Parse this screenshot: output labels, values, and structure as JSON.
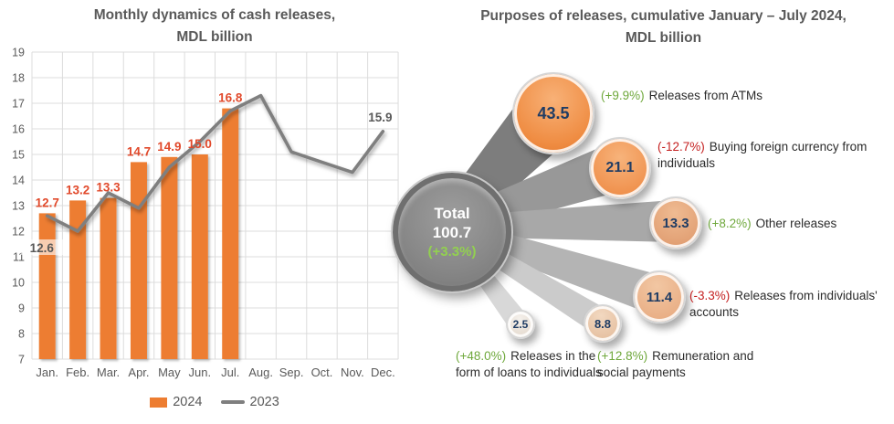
{
  "chart_data": [
    {
      "type": "bar",
      "title": "Monthly dynamics of cash releases, MDL billion",
      "title_lines": [
        "Monthly dynamics of cash releases,",
        "MDL billion"
      ],
      "categories": [
        "Jan.",
        "Feb.",
        "Mar.",
        "Apr.",
        "May",
        "Jun.",
        "Jul.",
        "Aug.",
        "Sep.",
        "Oct.",
        "Nov.",
        "Dec."
      ],
      "series": [
        {
          "name": "2024",
          "type": "bar",
          "color": "#ED7D31",
          "values": [
            12.7,
            13.2,
            13.3,
            14.7,
            14.9,
            15.0,
            16.8,
            null,
            null,
            null,
            null,
            null
          ],
          "label_color": "#E1492B"
        },
        {
          "name": "2023",
          "type": "line",
          "color": "#7F7F7F",
          "values": [
            12.6,
            12.0,
            13.5,
            12.9,
            14.5,
            15.5,
            16.7,
            17.3,
            15.1,
            14.7,
            14.3,
            15.9
          ],
          "point_labels": [
            {
              "index": 0,
              "text": "12.6"
            },
            {
              "index": 11,
              "text": "15.9"
            }
          ],
          "label_color": "#595959"
        }
      ],
      "ylim": [
        7,
        19
      ],
      "ytick_step": 1,
      "grid": true,
      "legend_position": "bottom"
    },
    {
      "type": "bubble",
      "title": "Purposes of releases, cumulative January – July 2024, MDL billion",
      "title_lines": [
        "Purposes of releases, cumulative January – July 2024,",
        "MDL billion"
      ],
      "total": {
        "label": "Total",
        "value": "100.7",
        "pct": "(+3.3%)"
      },
      "bubbles": [
        {
          "value": "43.5",
          "pct": "(+9.9%)",
          "trend": "up",
          "label": "Releases from ATMs"
        },
        {
          "value": "21.1",
          "pct": "(-12.7%)",
          "trend": "down",
          "label": "Buying foreign currency from individuals"
        },
        {
          "value": "13.3",
          "pct": "(+8.2%)",
          "trend": "up",
          "label": "Other releases"
        },
        {
          "value": "11.4",
          "pct": "(-3.3%)",
          "trend": "down",
          "label": "Releases from individuals' accounts"
        },
        {
          "value": "8.8",
          "pct": "(+12.8%)",
          "trend": "up",
          "label": "Remuneration and social payments"
        },
        {
          "value": "2.5",
          "pct": "(+48.0%)",
          "trend": "up",
          "label": "Releases in the form of loans to individuals"
        }
      ],
      "colors": {
        "positive": "#6FA83C",
        "negative": "#C41F1F",
        "total_pct": "#92D050",
        "bubble_value": "#1F3C64",
        "title": "#595959"
      }
    }
  ]
}
